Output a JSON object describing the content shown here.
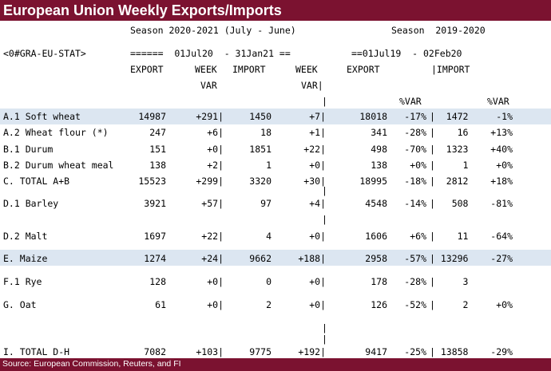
{
  "title": "European Union Weekly Exports/Imports",
  "header": {
    "season1": "Season 2020-2021 (July - June)",
    "season2": "Season  2019-2020",
    "ric": "<0#GRA-EU-STAT>",
    "range1": "======  01Jul20  - 31Jan21 ==",
    "range2": "==01Jul19  - 02Feb20",
    "col_export": "EXPORT",
    "col_week": "WEEK",
    "col_import": "IMPORT",
    "col_week2": "WEEK",
    "col_export2": "EXPORT",
    "col_import2": "|IMPORT",
    "var": "VAR",
    "var2": "VAR|",
    "pctvar1": "%VAR",
    "pctvar2": "%VAR"
  },
  "rows": [
    {
      "name": "A.1 Soft wheat",
      "exp": "14987",
      "wv": "+291|",
      "imp": "1450",
      "wv2": "+7|",
      "exp2": "18018",
      "pv": "-17%",
      "imp2": "|  1472",
      "pv2": "-1%"
    },
    {
      "name": "A.2 Wheat flour (*)",
      "exp": "247",
      "wv": "+6|",
      "imp": "18",
      "wv2": "+1|",
      "exp2": "341",
      "pv": "-28%",
      "imp2": "|    16",
      "pv2": "+13%"
    },
    {
      "name": "B.1 Durum",
      "exp": "151",
      "wv": "+0|",
      "imp": "1851",
      "wv2": "+22|",
      "exp2": "498",
      "pv": "-70%",
      "imp2": "|  1323",
      "pv2": "+40%"
    },
    {
      "name": "B.2 Durum wheat meal",
      "exp": "138",
      "wv": "+2|",
      "imp": "1",
      "wv2": "+0|",
      "exp2": "138",
      "pv": "+0%",
      "imp2": "|     1",
      "pv2": "+0%"
    },
    {
      "name": "C. TOTAL A+B",
      "exp": "15523",
      "wv": "+299|",
      "imp": "3320",
      "wv2": "+30|",
      "exp2": "18995",
      "pv": "-18%",
      "imp2": "|  2812",
      "pv2": "+18%"
    },
    {
      "name": "D.1 Barley",
      "exp": "3921",
      "wv": "+57|",
      "imp": "97",
      "wv2": "+4|",
      "exp2": "4548",
      "pv": "-14%",
      "imp2": "|   508",
      "pv2": "-81%"
    },
    {
      "name": "D.2 Malt",
      "exp": "1697",
      "wv": "+22|",
      "imp": "4",
      "wv2": "+0|",
      "exp2": "1606",
      "pv": "+6%",
      "imp2": "|    11",
      "pv2": "-64%"
    },
    {
      "name": "E. Maize",
      "exp": "1274",
      "wv": "+24|",
      "imp": "9662",
      "wv2": "+188|",
      "exp2": "2958",
      "pv": "-57%",
      "imp2": "| 13296",
      "pv2": "-27%"
    },
    {
      "name": "F.1 Rye",
      "exp": "128",
      "wv": "+0|",
      "imp": "0",
      "wv2": "+0|",
      "exp2": "178",
      "pv": "-28%",
      "imp2": "|     3",
      "pv2": ""
    },
    {
      "name": "G. Oat",
      "exp": "61",
      "wv": "+0|",
      "imp": "2",
      "wv2": "+0|",
      "exp2": "126",
      "pv": "-52%",
      "imp2": "|     2",
      "pv2": "+0%"
    },
    {
      "name": "I. TOTAL D-H",
      "exp": "7082",
      "wv": "+103|",
      "imp": "9775",
      "wv2": "+192|",
      "exp2": "9417",
      "pv": "-25%",
      "imp2": "| 13858",
      "pv2": "-29%"
    }
  ],
  "separator": "|",
  "footer": "Source: European Commission, Reuters, and FI"
}
